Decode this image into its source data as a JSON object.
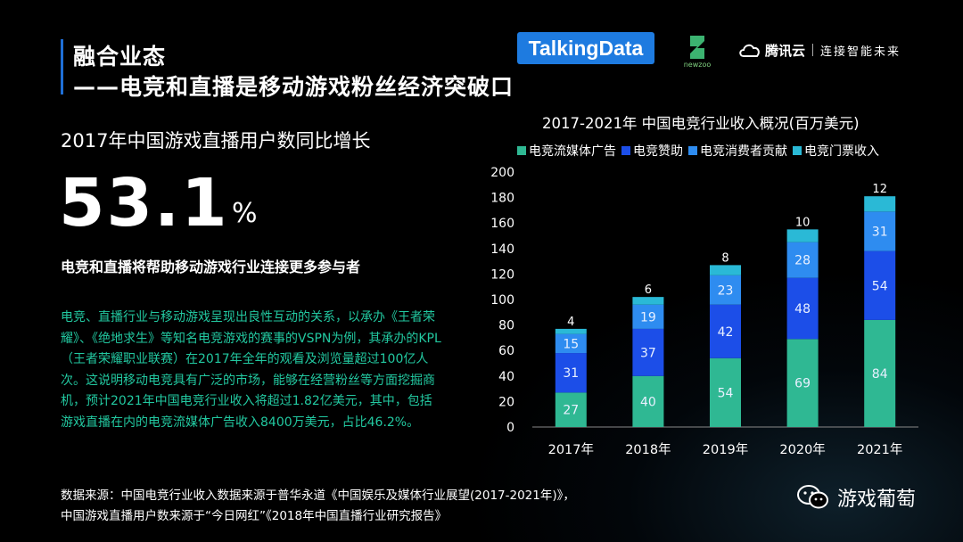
{
  "title_line1": "融合业态",
  "title_line2": "——电竞和直播是移动游戏粉丝经济突破口",
  "logos": {
    "talkingdata": "TalkingData",
    "newzoo": "newzoo",
    "tencent_name": "腾讯云",
    "tencent_slogan": "连接智能未来"
  },
  "stat": {
    "label": "2017年中国游戏直播用户数同比增长",
    "value": "53.1",
    "unit": "%"
  },
  "subheading": "电竞和直播将帮助移动游戏行业连接更多参与者",
  "description": "电竞、直播行业与移动游戏呈现出良性互动的关系，以承办《王者荣耀》、《绝地求生》等知名电竞游戏的赛事的VSPN为例，其承办的KPL（王者荣耀职业联赛）在2017年全年的观看及浏览量超过100亿人次。这说明移动电竞具有广泛的市场，能够在经营粉丝等方面挖掘商机，预计2021年中国电竞行业收入将超过1.82亿美元，其中，包括游戏直播在内的电竞流媒体广告收入8400万美元，占比46.2%。",
  "source": {
    "line1": "数据来源：中国电竞行业收入数据来源于普华永道《中国娱乐及媒体行业展望(2017-2021年)》，",
    "line2": "中国游戏直播用户数来源于“今日网红”《2018年中国直播行业研究报告》"
  },
  "wechat": {
    "name": "游戏葡萄",
    "icon": "wechat-icon"
  },
  "chart_data": {
    "type": "bar",
    "stacked": true,
    "title": "2017-2021年  中国电竞行业收入概况(百万美元)",
    "categories": [
      "2017年",
      "2018年",
      "2019年",
      "2020年",
      "2021年"
    ],
    "ylim": [
      0,
      200
    ],
    "yticks": [
      0,
      20,
      40,
      60,
      80,
      100,
      120,
      140,
      160,
      180,
      200
    ],
    "legend_position": "top",
    "series": [
      {
        "name": "电竞流媒体广告",
        "color": "#2fb893",
        "values": [
          27,
          40,
          54,
          69,
          84
        ]
      },
      {
        "name": "电竞赞助",
        "color": "#1c4ee8",
        "values": [
          31,
          37,
          42,
          48,
          54
        ]
      },
      {
        "name": "电竞消费者贡献",
        "color": "#2e8cf0",
        "values": [
          15,
          19,
          23,
          28,
          31
        ]
      },
      {
        "name": "电竞门票收入",
        "color": "#2ab9d6",
        "values": [
          4,
          6,
          8,
          10,
          12
        ]
      }
    ]
  }
}
